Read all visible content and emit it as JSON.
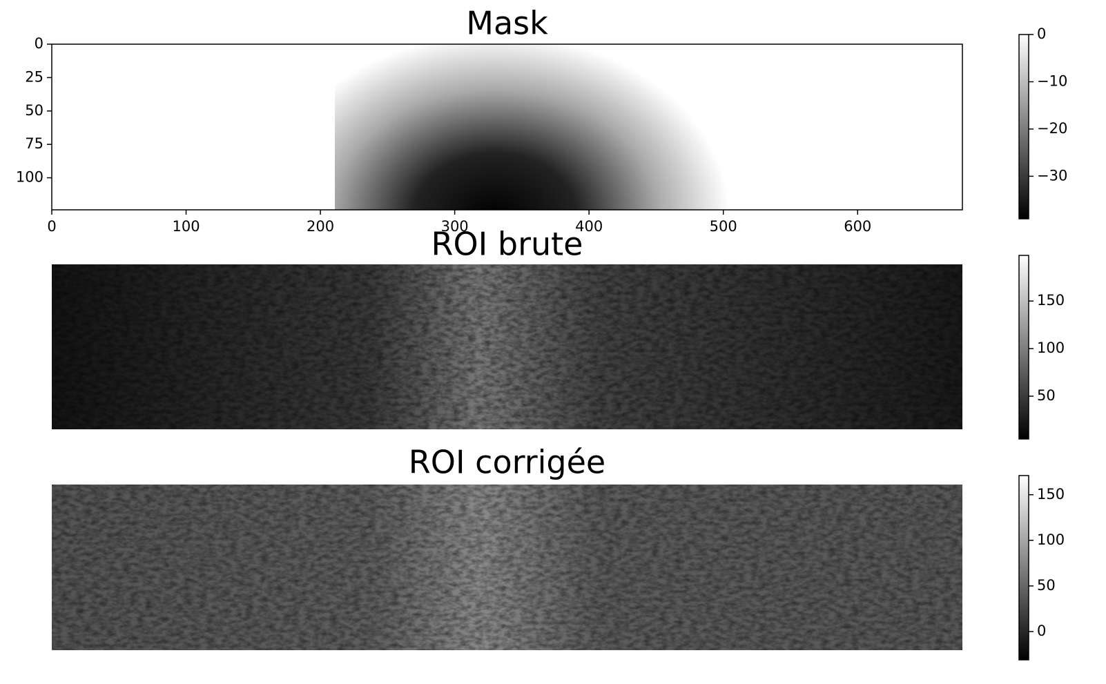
{
  "chart_data": [
    {
      "type": "image",
      "title": "Mask",
      "xlim": [
        0,
        678
      ],
      "xticks": [
        0,
        100,
        200,
        300,
        400,
        500,
        600
      ],
      "ylim": [
        124,
        0
      ],
      "yticks": [
        0,
        25,
        50,
        75,
        100
      ],
      "colorbar": {
        "lim": [
          -39,
          0
        ],
        "ticks": [
          0,
          {
            "value": -10,
            "label": "−10"
          },
          {
            "value": -20,
            "label": "−20"
          },
          {
            "value": -30,
            "label": "−30"
          }
        ]
      }
    },
    {
      "type": "image",
      "title": "ROI brute",
      "colorbar": {
        "lim": [
          5,
          198
        ],
        "ticks": [
          50,
          100,
          150
        ]
      }
    },
    {
      "type": "image",
      "title": "ROI corrigée",
      "colorbar": {
        "lim": [
          -31,
          171
        ],
        "ticks": [
          0,
          50,
          100,
          150
        ]
      }
    }
  ]
}
